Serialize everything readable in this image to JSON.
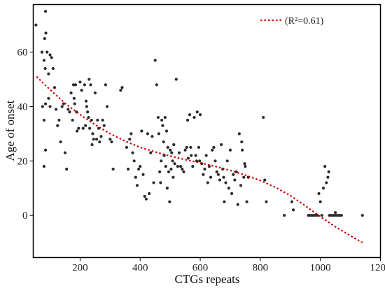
{
  "chart_data": {
    "type": "scatter",
    "xlabel": "CTGs repeats",
    "ylabel": "Age of onset",
    "xlim": [
      44,
      1200
    ],
    "ylim": [
      -15.5,
      77.5
    ],
    "xticks": [
      200,
      400,
      600,
      800,
      1000,
      1200
    ],
    "yticks": [
      0,
      20,
      40,
      60
    ],
    "grid": false,
    "legend": {
      "position": "top-right",
      "label": "(R²=0.61)"
    },
    "colors": {
      "points": "#2b2b2b",
      "trend": "#cc0000",
      "axes": "#000000"
    },
    "points": [
      [
        53,
        70
      ],
      [
        73,
        60
      ],
      [
        80,
        57
      ],
      [
        82,
        65
      ],
      [
        85,
        75
      ],
      [
        84,
        54
      ],
      [
        86,
        67
      ],
      [
        90,
        60
      ],
      [
        95,
        52
      ],
      [
        100,
        59
      ],
      [
        105,
        58
      ],
      [
        110,
        54
      ],
      [
        95,
        43
      ],
      [
        75,
        40
      ],
      [
        85,
        41
      ],
      [
        100,
        40
      ],
      [
        120,
        39
      ],
      [
        115,
        47
      ],
      [
        80,
        35
      ],
      [
        85,
        24
      ],
      [
        80,
        18
      ],
      [
        125,
        33
      ],
      [
        130,
        35
      ],
      [
        135,
        27
      ],
      [
        140,
        40
      ],
      [
        145,
        41
      ],
      [
        150,
        23
      ],
      [
        155,
        17
      ],
      [
        160,
        39
      ],
      [
        165,
        38
      ],
      [
        170,
        45
      ],
      [
        175,
        35
      ],
      [
        178,
        48
      ],
      [
        180,
        43
      ],
      [
        182,
        41
      ],
      [
        185,
        48
      ],
      [
        188,
        38
      ],
      [
        190,
        31
      ],
      [
        195,
        32
      ],
      [
        200,
        49
      ],
      [
        205,
        46
      ],
      [
        210,
        32
      ],
      [
        215,
        48
      ],
      [
        218,
        33
      ],
      [
        220,
        42
      ],
      [
        222,
        40
      ],
      [
        225,
        38
      ],
      [
        228,
        36
      ],
      [
        230,
        50
      ],
      [
        232,
        32
      ],
      [
        235,
        48
      ],
      [
        238,
        35
      ],
      [
        240,
        26
      ],
      [
        242,
        30
      ],
      [
        245,
        28
      ],
      [
        250,
        45
      ],
      [
        255,
        28
      ],
      [
        258,
        35
      ],
      [
        262,
        32
      ],
      [
        265,
        27
      ],
      [
        270,
        29
      ],
      [
        275,
        35
      ],
      [
        280,
        33
      ],
      [
        285,
        48
      ],
      [
        290,
        40
      ],
      [
        300,
        28
      ],
      [
        305,
        27
      ],
      [
        310,
        17
      ],
      [
        335,
        46
      ],
      [
        340,
        47
      ],
      [
        355,
        25
      ],
      [
        360,
        17
      ],
      [
        365,
        28
      ],
      [
        370,
        30
      ],
      [
        375,
        23
      ],
      [
        380,
        20
      ],
      [
        385,
        14
      ],
      [
        390,
        11
      ],
      [
        395,
        17
      ],
      [
        400,
        18
      ],
      [
        405,
        31
      ],
      [
        410,
        15
      ],
      [
        415,
        7
      ],
      [
        420,
        6
      ],
      [
        425,
        30
      ],
      [
        430,
        8
      ],
      [
        435,
        23
      ],
      [
        440,
        29
      ],
      [
        445,
        12
      ],
      [
        450,
        57
      ],
      [
        455,
        48
      ],
      [
        460,
        36
      ],
      [
        462,
        30
      ],
      [
        465,
        16
      ],
      [
        468,
        12
      ],
      [
        470,
        20
      ],
      [
        472,
        35
      ],
      [
        475,
        33
      ],
      [
        478,
        27
      ],
      [
        480,
        22
      ],
      [
        483,
        36
      ],
      [
        485,
        18
      ],
      [
        488,
        31
      ],
      [
        490,
        10
      ],
      [
        492,
        25
      ],
      [
        495,
        16
      ],
      [
        498,
        5
      ],
      [
        500,
        24
      ],
      [
        503,
        17
      ],
      [
        505,
        23
      ],
      [
        508,
        20
      ],
      [
        510,
        14
      ],
      [
        512,
        26
      ],
      [
        515,
        19
      ],
      [
        520,
        50
      ],
      [
        525,
        18
      ],
      [
        530,
        23
      ],
      [
        535,
        18
      ],
      [
        540,
        17
      ],
      [
        545,
        16
      ],
      [
        550,
        24
      ],
      [
        555,
        25
      ],
      [
        558,
        35
      ],
      [
        560,
        21
      ],
      [
        565,
        37
      ],
      [
        568,
        25
      ],
      [
        570,
        22
      ],
      [
        575,
        18
      ],
      [
        580,
        36
      ],
      [
        585,
        22
      ],
      [
        588,
        20
      ],
      [
        590,
        38
      ],
      [
        595,
        25
      ],
      [
        598,
        20
      ],
      [
        600,
        37
      ],
      [
        605,
        19
      ],
      [
        610,
        15
      ],
      [
        615,
        17
      ],
      [
        620,
        22
      ],
      [
        625,
        12
      ],
      [
        630,
        18
      ],
      [
        635,
        14
      ],
      [
        640,
        24
      ],
      [
        645,
        25
      ],
      [
        650,
        20
      ],
      [
        655,
        16
      ],
      [
        660,
        15
      ],
      [
        665,
        13
      ],
      [
        670,
        26
      ],
      [
        675,
        17
      ],
      [
        678,
        14
      ],
      [
        680,
        5
      ],
      [
        685,
        12
      ],
      [
        690,
        20
      ],
      [
        695,
        10
      ],
      [
        700,
        24
      ],
      [
        705,
        8
      ],
      [
        710,
        15
      ],
      [
        715,
        13
      ],
      [
        720,
        16
      ],
      [
        725,
        4
      ],
      [
        730,
        30
      ],
      [
        735,
        11
      ],
      [
        738,
        27
      ],
      [
        740,
        24
      ],
      [
        745,
        14
      ],
      [
        748,
        19
      ],
      [
        750,
        18
      ],
      [
        755,
        5
      ],
      [
        760,
        14
      ],
      [
        810,
        36
      ],
      [
        815,
        13
      ],
      [
        820,
        5
      ],
      [
        880,
        0
      ],
      [
        905,
        5
      ],
      [
        910,
        2
      ],
      [
        960,
        0
      ],
      [
        965,
        0
      ],
      [
        970,
        0
      ],
      [
        975,
        0
      ],
      [
        980,
        0
      ],
      [
        985,
        0
      ],
      [
        990,
        0
      ],
      [
        995,
        8
      ],
      [
        1000,
        5
      ],
      [
        1005,
        0
      ],
      [
        1010,
        10
      ],
      [
        1015,
        18
      ],
      [
        1020,
        12
      ],
      [
        1025,
        14
      ],
      [
        1028,
        16
      ],
      [
        1030,
        0
      ],
      [
        1035,
        0
      ],
      [
        1040,
        0
      ],
      [
        1045,
        0
      ],
      [
        1048,
        0
      ],
      [
        1050,
        1
      ],
      [
        1055,
        0
      ],
      [
        1060,
        0
      ],
      [
        1065,
        0
      ],
      [
        1070,
        0
      ],
      [
        1140,
        0
      ]
    ],
    "trend": [
      [
        55,
        51
      ],
      [
        100,
        46.2
      ],
      [
        150,
        41.2
      ],
      [
        200,
        37
      ],
      [
        250,
        33.3
      ],
      [
        300,
        30
      ],
      [
        350,
        27.3
      ],
      [
        400,
        25
      ],
      [
        450,
        23.3
      ],
      [
        500,
        21.8
      ],
      [
        550,
        20.5
      ],
      [
        600,
        19.3
      ],
      [
        650,
        18
      ],
      [
        700,
        16.5
      ],
      [
        750,
        14.8
      ],
      [
        800,
        12.8
      ],
      [
        850,
        10.3
      ],
      [
        900,
        7.3
      ],
      [
        950,
        3.5
      ],
      [
        1000,
        -0.5
      ],
      [
        1050,
        -4.2
      ],
      [
        1100,
        -7.5
      ],
      [
        1140,
        -10
      ]
    ]
  }
}
